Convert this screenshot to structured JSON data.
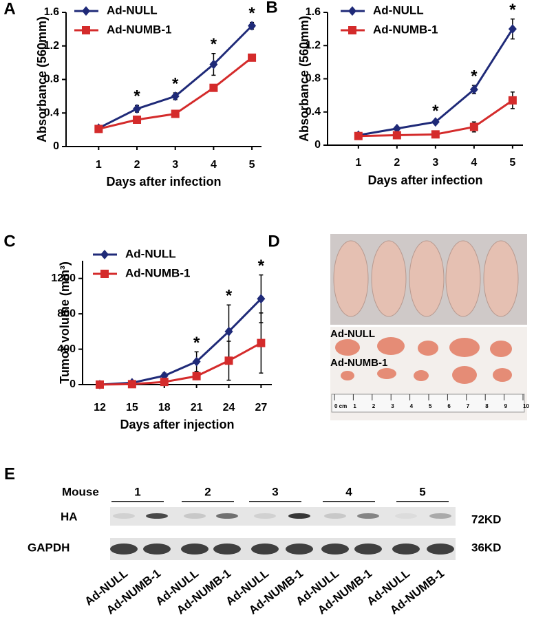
{
  "chart_data": [
    {
      "panel": "A",
      "type": "line",
      "x_label": "Days after infection",
      "y_label": "Absorbance (560mm)",
      "x": [
        1,
        2,
        3,
        4,
        5
      ],
      "xlim": [
        0.15,
        5.25
      ],
      "xticks": [
        1,
        2,
        3,
        4,
        5
      ],
      "ylim": [
        0,
        1.6
      ],
      "yticks": [
        0,
        0.4,
        0.8,
        1.2,
        1.6
      ],
      "series": [
        {
          "name": "Ad-NULL",
          "color": "#1f2a78",
          "marker": "diamond",
          "values": [
            0.22,
            0.45,
            0.6,
            0.98,
            1.44
          ],
          "errors": [
            0.02,
            0.04,
            0.04,
            0.13,
            0.04
          ]
        },
        {
          "name": "Ad-NUMB-1",
          "color": "#d42b2b",
          "marker": "square",
          "values": [
            0.21,
            0.32,
            0.39,
            0.7,
            1.06
          ],
          "errors": [
            0.02,
            0.02,
            0.02,
            0.02,
            0.02
          ]
        }
      ],
      "stars": {
        "label": "*",
        "x": [
          2,
          3,
          4,
          5
        ]
      }
    },
    {
      "panel": "B",
      "type": "line",
      "x_label": "Days after infection",
      "y_label": "Absorbance (560mm)",
      "x": [
        1,
        2,
        3,
        4,
        5
      ],
      "xlim": [
        0.2,
        5.27
      ],
      "xticks": [
        1,
        2,
        3,
        4,
        5
      ],
      "ylim": [
        0,
        1.6
      ],
      "yticks": [
        0,
        0.4,
        0.8,
        1.2,
        1.6
      ],
      "series": [
        {
          "name": "Ad-NULL",
          "color": "#1f2a78",
          "marker": "diamond",
          "values": [
            0.12,
            0.2,
            0.28,
            0.67,
            1.4
          ],
          "errors": [
            0.01,
            0.01,
            0.02,
            0.05,
            0.12
          ]
        },
        {
          "name": "Ad-NUMB-1",
          "color": "#d42b2b",
          "marker": "square",
          "values": [
            0.11,
            0.12,
            0.13,
            0.22,
            0.54
          ],
          "errors": [
            0.01,
            0.01,
            0.02,
            0.06,
            0.1
          ]
        }
      ],
      "stars": {
        "label": "*",
        "x": [
          3,
          4,
          5
        ]
      }
    },
    {
      "panel": "C",
      "type": "line",
      "x_label": "Days after injection",
      "y_label": "Tumor volume (mm³)",
      "x": [
        12,
        15,
        18,
        21,
        24,
        27
      ],
      "xlim": [
        10.4,
        28
      ],
      "xticks": [
        12,
        15,
        18,
        21,
        24,
        27
      ],
      "ylim": [
        0,
        1400
      ],
      "yticks": [
        0,
        400,
        800,
        1200
      ],
      "series": [
        {
          "name": "Ad-NULL",
          "color": "#1f2a78",
          "marker": "diamond",
          "values": [
            0,
            20,
            100,
            260,
            600,
            970
          ],
          "errors": [
            5,
            10,
            30,
            110,
            300,
            270
          ]
        },
        {
          "name": "Ad-NUMB-1",
          "color": "#d42b2b",
          "marker": "square",
          "values": [
            0,
            5,
            30,
            95,
            270,
            470
          ],
          "errors": [
            5,
            5,
            15,
            40,
            220,
            340
          ]
        }
      ],
      "stars": {
        "label": "*",
        "x": [
          21,
          24,
          27
        ]
      }
    }
  ],
  "photo": {
    "panel": "D",
    "labels": [
      "Ad-NULL",
      "Ad-NUMB-1"
    ],
    "ruler": [
      "0 cm",
      "1",
      "2",
      "3",
      "4",
      "5",
      "6",
      "7",
      "8",
      "9",
      "10"
    ]
  },
  "blot": {
    "panel": "E",
    "mouse_label": "Mouse",
    "mice": [
      "1",
      "2",
      "3",
      "4",
      "5"
    ],
    "rows": [
      {
        "name": "HA",
        "size": "72KD"
      },
      {
        "name": "GAPDH",
        "size": "36KD"
      }
    ],
    "lanes": [
      "Ad-NULL",
      "Ad-NUMB-1",
      "Ad-NULL",
      "Ad-NUMB-1",
      "Ad-NULL",
      "Ad-NUMB-1",
      "Ad-NULL",
      "Ad-NUMB-1",
      "Ad-NULL",
      "Ad-NUMB-1"
    ]
  }
}
